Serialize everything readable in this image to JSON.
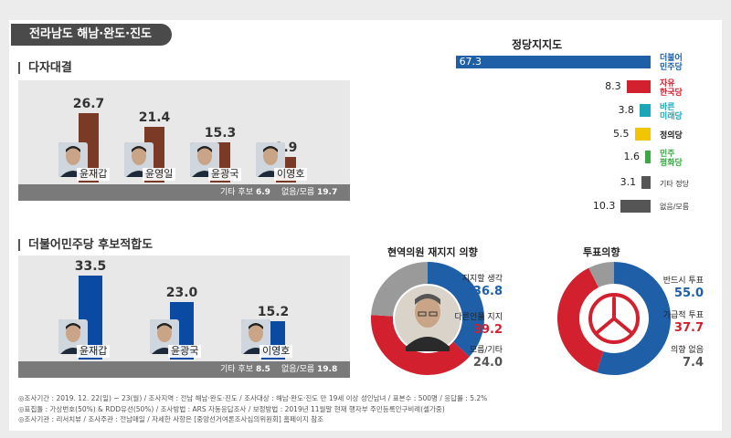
{
  "region_title": "전라남도 해남·완도·진도",
  "chart_data": [
    {
      "type": "bar",
      "title": "다자대결",
      "categories": [
        "윤재갑",
        "윤영일",
        "윤광국",
        "이영호"
      ],
      "values": [
        26.7,
        21.4,
        15.3,
        9.9
      ],
      "value_labels": [
        "26.7",
        "21.4",
        "15.3",
        "9.9"
      ],
      "extra": [
        {
          "label": "기타 후보",
          "value": "6.9"
        },
        {
          "label": "없음/모름",
          "value": "19.7"
        }
      ],
      "color": "#7b3a26",
      "ylim": [
        0,
        35
      ]
    },
    {
      "type": "bar",
      "title": "더불어민주당 후보적합도",
      "categories": [
        "윤재갑",
        "윤광국",
        "이영호"
      ],
      "values": [
        33.5,
        23.0,
        15.2
      ],
      "value_labels": [
        "33.5",
        "23.0",
        "15.2"
      ],
      "extra": [
        {
          "label": "기타 후보",
          "value": "8.5"
        },
        {
          "label": "없음/모름",
          "value": "19.8"
        }
      ],
      "color": "#0b4aa2",
      "ylim": [
        0,
        40
      ]
    },
    {
      "type": "bar",
      "title": "정당지지도",
      "orientation": "horizontal",
      "categories": [
        "더불어민주당",
        "자유한국당",
        "바른미래당",
        "정의당",
        "민주평화당",
        "기타 정당",
        "없음/모름"
      ],
      "values": [
        67.3,
        8.3,
        3.8,
        5.5,
        1.6,
        3.1,
        10.3
      ],
      "value_labels": [
        "67.3",
        "8.3",
        "3.8",
        "5.5",
        "1.6",
        "3.1",
        "10.3"
      ],
      "colors": [
        "#1f5fa8",
        "#d2202f",
        "#1aa8b8",
        "#f3c400",
        "#3aa845",
        "#555555",
        "#555555"
      ],
      "xlim": [
        0,
        70
      ]
    },
    {
      "type": "pie",
      "title": "현역의원 재지지 의향",
      "labels": [
        "지지할 생각",
        "다른인물 지지",
        "모름/기타"
      ],
      "values": [
        36.8,
        39.2,
        24.0
      ],
      "value_labels": [
        "36.8",
        "39.2",
        "24.0"
      ],
      "colors": [
        "#1f5fa8",
        "#d2202f",
        "#9a9a9a"
      ]
    },
    {
      "type": "pie",
      "title": "투표의향",
      "labels": [
        "반드시 투표",
        "가급적 투표",
        "의향 없음"
      ],
      "values": [
        55.0,
        37.7,
        7.4
      ],
      "value_labels": [
        "55.0",
        "37.7",
        "7.4"
      ],
      "colors": [
        "#1f5fa8",
        "#d2202f",
        "#9a9a9a"
      ]
    }
  ],
  "party_logos": {
    "minjoo": [
      "더불어",
      "민주당"
    ],
    "jayu": [
      "자유",
      "한국당"
    ],
    "bareun": [
      "바른",
      "미래당"
    ],
    "jeongui": "정의당",
    "pyeonghwa": [
      "민주",
      "평화당"
    ],
    "other": "기타 정당",
    "none": "없음/모름"
  },
  "notes": [
    "◎조사기간 : 2019. 12. 22(일) ~ 23(월) / 조사지역 : 전남 해남·완도·진도 / 조사대상 : 해남·완도·진도 만 19세 이상 성인남녀 / 표본수 : 500명 / 응답률 : 5.2%",
    "◎표집틀 : 가상번호(50%) & RDD유선(50%) / 조사방법 : ARS 자동응답조사 / 보정방법 : 2019년 11월말 현재 행자부 주민등록인구비례(셀가중)",
    "◎조사기관 : 리서치뷰 / 조사주관 : 전남매일 / 자세한 사항은 [중앙선거여론조사심의위원회] 홈페이지 참조"
  ]
}
